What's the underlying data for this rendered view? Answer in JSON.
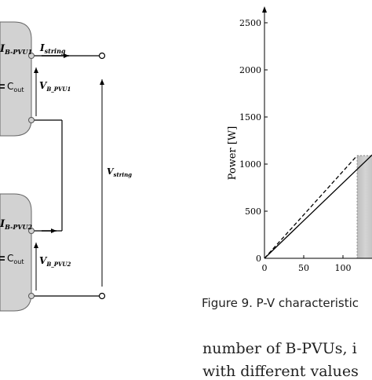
{
  "circuit": {
    "labels": {
      "i_pvu1_main": "I",
      "i_pvu1_sub": "B-PVU1",
      "i_string_main": "I",
      "i_string_sub": "string",
      "cout1_main": "C",
      "cout1_sub": "out",
      "v_pvu1_main": "V",
      "v_pvu1_sub": "B_PVU1",
      "v_string_main": "V",
      "v_string_sub": "string",
      "i_pvu2_main": "I",
      "i_pvu2_sub": "B-PVU2",
      "cout2_main": "C",
      "cout2_sub": "out",
      "v_pvu2_main": "V",
      "v_pvu2_sub": "B_PVU2"
    }
  },
  "chart_data": {
    "type": "line",
    "title": "",
    "xlabel": "",
    "ylabel": "Power [W]",
    "xlim": [
      0,
      140
    ],
    "ylim": [
      0,
      2600
    ],
    "x_ticks": [
      "0",
      "50",
      "100"
    ],
    "y_ticks": [
      "0",
      "500",
      "1000",
      "1500",
      "2000",
      "2500"
    ],
    "series": [
      {
        "style": "dashed",
        "x": [
          0,
          118
        ],
        "y": [
          0,
          1090
        ]
      },
      {
        "style": "solid",
        "x": [
          0,
          140
        ],
        "y": [
          0,
          1120
        ]
      }
    ],
    "shaded_region": {
      "x_start": 118,
      "x_end": 140,
      "y_top": 1090
    }
  },
  "caption": {
    "text": "Figure 9. P-V characteristic"
  },
  "body": {
    "line1": "number of B-PVUs, i",
    "line2": "with different values"
  }
}
